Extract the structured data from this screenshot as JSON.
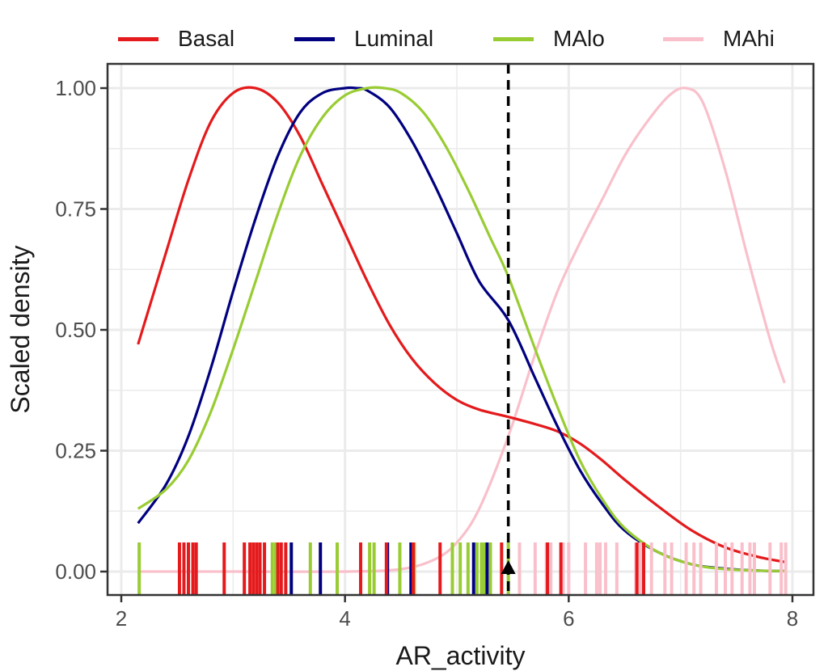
{
  "chart_data": {
    "type": "line",
    "title": "",
    "xlabel": "AR_activity",
    "ylabel": "Scaled density",
    "xlim": [
      1.8,
      8.3
    ],
    "ylim": [
      -0.045,
      1.05
    ],
    "x_ticks": [
      2,
      4,
      6,
      8
    ],
    "x_tick_labels": [
      "2",
      "4",
      "6",
      "8"
    ],
    "y_ticks": [
      0,
      0.25,
      0.5,
      0.75,
      1.0
    ],
    "y_tick_labels": [
      "0.00",
      "0.25",
      "0.50",
      "0.75",
      "1.00"
    ],
    "grid": true,
    "legend_position": "top",
    "vline": {
      "x": 5.46,
      "style": "dashed",
      "color": "#000000"
    },
    "marker": {
      "x": 5.46,
      "y": 0.0,
      "shape": "triangle",
      "color": "#000000"
    },
    "series": [
      {
        "name": "Basal",
        "color": "#e41a1c",
        "x": [
          2.15,
          2.4,
          2.6,
          2.8,
          3.0,
          3.2,
          3.4,
          3.6,
          3.8,
          4.0,
          4.2,
          4.4,
          4.6,
          4.8,
          5.0,
          5.2,
          5.46,
          5.7,
          5.9,
          6.1,
          6.3,
          6.5,
          6.8,
          7.1,
          7.4,
          7.7,
          7.93
        ],
        "y": [
          0.47,
          0.66,
          0.81,
          0.93,
          0.99,
          1.0,
          0.97,
          0.9,
          0.8,
          0.7,
          0.6,
          0.51,
          0.44,
          0.39,
          0.355,
          0.335,
          0.32,
          0.305,
          0.29,
          0.265,
          0.23,
          0.19,
          0.135,
          0.085,
          0.05,
          0.03,
          0.02
        ]
      },
      {
        "name": "Luminal",
        "color": "#000080",
        "x": [
          2.15,
          2.4,
          2.6,
          2.8,
          3.0,
          3.2,
          3.4,
          3.6,
          3.8,
          4.0,
          4.1,
          4.2,
          4.4,
          4.6,
          4.8,
          5.0,
          5.2,
          5.46,
          5.7,
          5.9,
          6.1,
          6.3,
          6.5,
          6.8,
          7.1,
          7.4,
          7.7,
          7.93
        ],
        "y": [
          0.1,
          0.18,
          0.28,
          0.42,
          0.58,
          0.73,
          0.86,
          0.95,
          0.99,
          1.0,
          1.0,
          0.995,
          0.96,
          0.89,
          0.8,
          0.7,
          0.6,
          0.52,
          0.4,
          0.3,
          0.21,
          0.14,
          0.085,
          0.04,
          0.015,
          0.006,
          0.002,
          0.001
        ]
      },
      {
        "name": "MAlo",
        "color": "#99cc33",
        "x": [
          2.15,
          2.4,
          2.6,
          2.8,
          3.0,
          3.2,
          3.4,
          3.6,
          3.8,
          4.0,
          4.2,
          4.35,
          4.5,
          4.7,
          4.9,
          5.1,
          5.3,
          5.46,
          5.7,
          5.9,
          6.1,
          6.3,
          6.5,
          6.8,
          7.1,
          7.4,
          7.7,
          7.93
        ],
        "y": [
          0.13,
          0.17,
          0.23,
          0.33,
          0.46,
          0.6,
          0.74,
          0.86,
          0.94,
          0.985,
          1.0,
          1.0,
          0.99,
          0.95,
          0.88,
          0.79,
          0.69,
          0.61,
          0.46,
          0.34,
          0.23,
          0.15,
          0.09,
          0.04,
          0.015,
          0.005,
          0.002,
          0.001
        ]
      },
      {
        "name": "MAhi",
        "color": "#f9c0cb",
        "x": [
          2.15,
          3.0,
          4.0,
          4.5,
          4.8,
          5.0,
          5.2,
          5.46,
          5.7,
          5.9,
          6.1,
          6.3,
          6.5,
          6.7,
          6.9,
          7.05,
          7.2,
          7.4,
          7.6,
          7.8,
          7.93
        ],
        "y": [
          0.0,
          0.0,
          0.0,
          0.005,
          0.025,
          0.06,
          0.13,
          0.28,
          0.45,
          0.58,
          0.68,
          0.77,
          0.86,
          0.93,
          0.985,
          1.0,
          0.97,
          0.83,
          0.65,
          0.48,
          0.39
        ]
      }
    ],
    "rug": [
      {
        "series": "MAlo",
        "x": [
          2.16,
          3.35,
          3.38,
          3.69,
          3.93,
          4.22,
          4.26,
          4.49,
          4.62,
          4.96,
          5.03,
          5.1,
          5.18,
          5.22,
          5.24,
          5.3,
          5.46
        ]
      },
      {
        "series": "Luminal",
        "x": [
          3.52,
          3.78,
          4.38,
          4.59,
          5.15,
          5.27
        ]
      },
      {
        "series": "Basal",
        "x": [
          2.52,
          2.56,
          2.6,
          2.64,
          2.67,
          2.92,
          3.1,
          3.15,
          3.18,
          3.21,
          3.24,
          3.28,
          3.4,
          3.43,
          3.47,
          4.14,
          4.37,
          4.61,
          4.85,
          5.4,
          5.81,
          5.93,
          6.61,
          6.67
        ]
      },
      {
        "series": "MAhi",
        "x": [
          5.56,
          5.7,
          5.8,
          5.84,
          5.95,
          6.0,
          6.15,
          6.25,
          6.28,
          6.33,
          6.43,
          6.6,
          6.64,
          6.74,
          6.86,
          6.92,
          7.05,
          7.12,
          7.18,
          7.32,
          7.4,
          7.46,
          7.55,
          7.62,
          7.66,
          7.8,
          7.9,
          7.94
        ]
      }
    ]
  }
}
